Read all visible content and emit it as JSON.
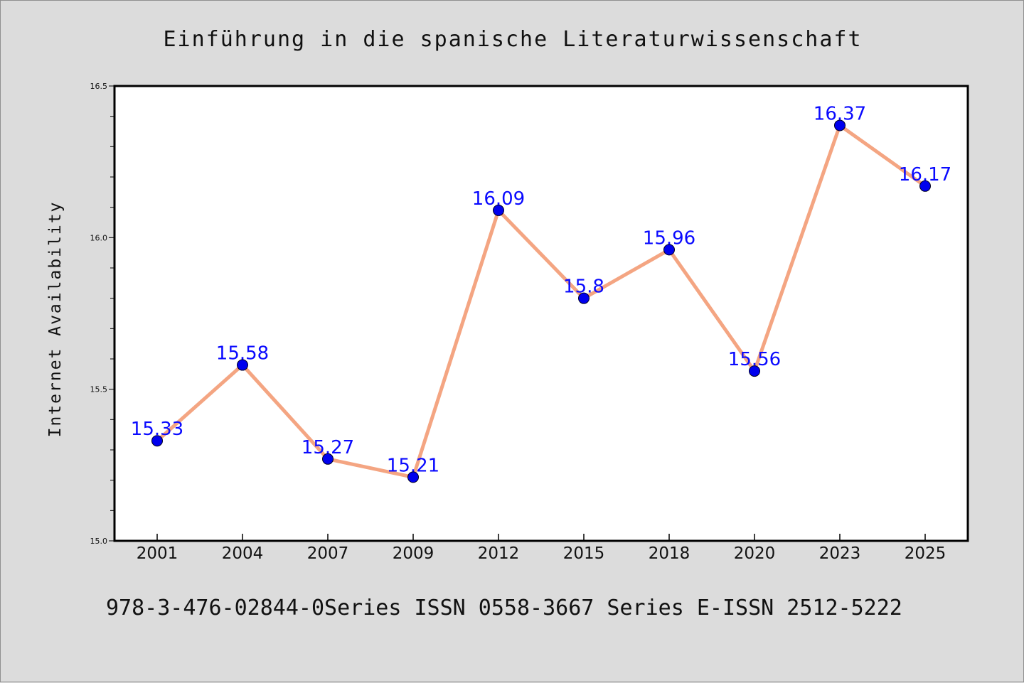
{
  "chart_data": {
    "type": "line",
    "title": "Einführung in die spanische Literaturwissenschaft",
    "ylabel": "Internet Availability",
    "xlabel": "",
    "categories": [
      "2001",
      "2004",
      "2007",
      "2009",
      "2012",
      "2015",
      "2018",
      "2020",
      "2023",
      "2025"
    ],
    "series": [
      {
        "values": [
          15.33,
          15.58,
          15.27,
          15.21,
          16.09,
          15.8,
          15.96,
          15.56,
          16.37,
          16.17
        ],
        "data_labels": [
          "15.33",
          "15.58",
          "15.27",
          "15.21",
          "16.09",
          "15.8",
          "15.96",
          "15.56",
          "16.37",
          "16.17"
        ],
        "line_color": "#f4a582",
        "marker_color": "#0000ee"
      }
    ],
    "ylim": [
      15.0,
      16.5
    ],
    "yticks": [
      "15.0",
      "15.5",
      "16.0",
      "16.5"
    ],
    "yminor_step": 0.1,
    "grid": false,
    "legend": "none"
  },
  "footer": "978-3-476-02844-0Series ISSN 0558-3667 Series E-ISSN 2512-5222",
  "colors": {
    "background": "#dcdcdc",
    "plot_background": "#ffffff",
    "axes": "#000000",
    "data_label": "#0a0aff"
  }
}
